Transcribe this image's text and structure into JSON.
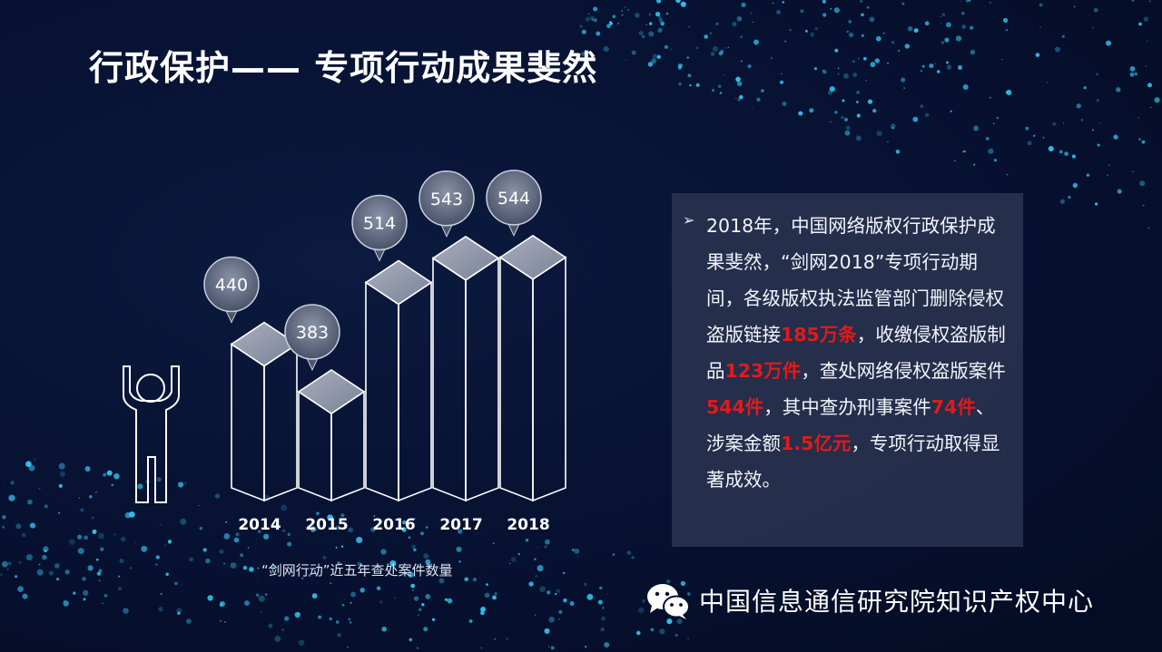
{
  "slide": {
    "title": "行政保护—— 专项行动成果斐然",
    "chart_caption": "“剑网行动”近五年查处案件数量"
  },
  "chart_data": {
    "type": "bar",
    "categories": [
      "2014",
      "2015",
      "2016",
      "2017",
      "2018"
    ],
    "values": [
      440,
      383,
      514,
      543,
      544
    ],
    "data_labels": [
      "440",
      "383",
      "514",
      "543",
      "544"
    ],
    "title": "“剑网行动”近五年查处案件数量",
    "xlabel": "",
    "ylabel": "",
    "grid": false,
    "legend": "none"
  },
  "panel": {
    "bullet_icon": "arrow-bullet",
    "parts": [
      {
        "text": "2018年，中国网络版权行政保护成果斐然，“剑网2018”专项行动期间，各级版权执法监管部门删除侵权盗版链接",
        "highlight": false
      },
      {
        "text": "185万条",
        "highlight": true
      },
      {
        "text": "，收缴侵权盗版制品",
        "highlight": false
      },
      {
        "text": "123万件",
        "highlight": true
      },
      {
        "text": "，查处网络侵权盗版案件",
        "highlight": false
      },
      {
        "text": "544件",
        "highlight": true
      },
      {
        "text": "，其中查办刑事案件",
        "highlight": false
      },
      {
        "text": "74件",
        "highlight": true
      },
      {
        "text": "、涉案金额",
        "highlight": false
      },
      {
        "text": "1.5亿元",
        "highlight": true
      },
      {
        "text": "，专项行动取得显著成效。",
        "highlight": false
      }
    ]
  },
  "footer": {
    "icon": "wechat-icon",
    "org_name": "中国信息通信研究院知识产权中心"
  },
  "colors": {
    "background": "#071131",
    "highlight": "#e01b1b",
    "panel": "#2a3450",
    "bar_edge": "#ffffff",
    "bar_top": "#8f96a8"
  }
}
